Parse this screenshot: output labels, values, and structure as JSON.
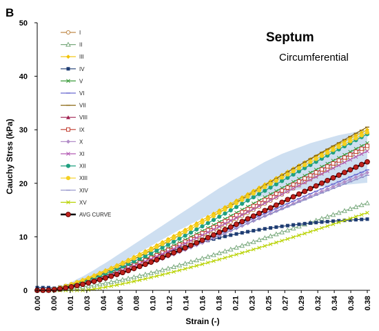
{
  "chart_data": {
    "type": "line",
    "panel_label": "B",
    "title": "Septum",
    "subtitle": "Circumferential",
    "xlabel": "Strain (-)",
    "ylabel": "Cauchy Strss (kPa)",
    "x": [
      0.0,
      0.0,
      0.01,
      0.01,
      0.02,
      0.03,
      0.03,
      0.04,
      0.04,
      0.05,
      0.06,
      0.06,
      0.07,
      0.08,
      0.08,
      0.09,
      0.1,
      0.1,
      0.11,
      0.12,
      0.12,
      0.13,
      0.14,
      0.14,
      0.15,
      0.16,
      0.16,
      0.17,
      0.18,
      0.18,
      0.19,
      0.2,
      0.21,
      0.21,
      0.22,
      0.23,
      0.23,
      0.24,
      0.25,
      0.25,
      0.26,
      0.27,
      0.27,
      0.28,
      0.29,
      0.29,
      0.3,
      0.31,
      0.31,
      0.32,
      0.33,
      0.33,
      0.34,
      0.35,
      0.35,
      0.36,
      0.37,
      0.37,
      0.38
    ],
    "x_tick_labels": [
      "0.00",
      "0.00",
      "0.01",
      "0.03",
      "0.04",
      "0.06",
      "0.08",
      "0.10",
      "0.12",
      "0.14",
      "0.16",
      "0.18",
      "0.21",
      "0.23",
      "0.25",
      "0.27",
      "0.29",
      "0.32",
      "0.34",
      "0.36",
      "0.38"
    ],
    "y_ticks": [
      0,
      10,
      20,
      30,
      40,
      50
    ],
    "ylim": [
      0,
      50
    ],
    "grid": false,
    "legend_position": "top-left",
    "band": {
      "lower": [
        0,
        0,
        0,
        0.1,
        0.3,
        0.6,
        0.9,
        1.3,
        1.7,
        2.1,
        2.6,
        3.1,
        3.6,
        4.1,
        4.7,
        5.3,
        5.9,
        6.5,
        7.1,
        7.7,
        8.3,
        8.9,
        9.5,
        10.1,
        10.7,
        11.3,
        11.8,
        12.4,
        12.9,
        13.5,
        14.0,
        14.5,
        15.0,
        15.4,
        15.8,
        16.2,
        16.5,
        16.8,
        17.1,
        17.3,
        17.6,
        17.8,
        18.0,
        18.2,
        18.4,
        18.6,
        18.8,
        18.9,
        19.1,
        19.2,
        19.3,
        19.4,
        19.5,
        19.6,
        19.7,
        19.8,
        19.9,
        20.0,
        20.1
      ],
      "upper": [
        0,
        0,
        0,
        0.2,
        0.6,
        1.0,
        1.5,
        2.1,
        2.6,
        3.2,
        3.8,
        4.5,
        5.1,
        5.8,
        6.5,
        7.2,
        7.9,
        8.6,
        9.3,
        10.0,
        10.7,
        11.4,
        12.1,
        12.8,
        13.5,
        14.2,
        14.9,
        15.6,
        16.3,
        17.0,
        17.7,
        18.4,
        19.1,
        19.7,
        20.4,
        21.0,
        21.6,
        22.2,
        22.8,
        23.4,
        24.0,
        24.5,
        25.0,
        25.5,
        25.9,
        26.3,
        26.7,
        27.1,
        27.5,
        27.8,
        28.1,
        28.4,
        28.7,
        29.0,
        29.2,
        29.4,
        29.6,
        29.8,
        30.0
      ],
      "color": "#c5d9ee"
    },
    "series": [
      {
        "name": "I",
        "color": "#c08a4a",
        "marker": "circle-open",
        "final": 26.5,
        "k": 1.0
      },
      {
        "name": "II",
        "color": "#7aaa7e",
        "marker": "triangle-open",
        "final": 16.3,
        "k": 1.1
      },
      {
        "name": "III",
        "color": "#f2c200",
        "marker": "diamond",
        "final": 30.0,
        "k": 0.55
      },
      {
        "name": "IV",
        "color": "#1f3d73",
        "marker": "square",
        "final": 13.3,
        "k": 1.4
      },
      {
        "name": "V",
        "color": "#3a9b3a",
        "marker": "x",
        "final": 27.5,
        "k": 0.8
      },
      {
        "name": "VI",
        "color": "#6a6ad0",
        "marker": "dash",
        "final": 22.5,
        "k": 0.75
      },
      {
        "name": "VII",
        "color": "#8b6914",
        "marker": "dash",
        "final": 30.5,
        "k": 0.7
      },
      {
        "name": "VIII",
        "color": "#a02050",
        "marker": "triangle",
        "final": 24.0,
        "k": 0.9
      },
      {
        "name": "IX",
        "color": "#c0392b",
        "marker": "square-open",
        "final": 27.0,
        "k": 0.85
      },
      {
        "name": "X",
        "color": "#b28dc8",
        "marker": "diamond",
        "final": 22.0,
        "k": 0.8
      },
      {
        "name": "XI",
        "color": "#b35ab3",
        "marker": "x",
        "final": 26.0,
        "k": 0.85
      },
      {
        "name": "XII",
        "color": "#20a080",
        "marker": "circle",
        "final": 29.2,
        "k": 0.75
      },
      {
        "name": "XIII",
        "color": "#f5d020",
        "marker": "circle",
        "final": 29.5,
        "k": 0.6
      },
      {
        "name": "XIV",
        "color": "#8e8ec8",
        "marker": "dash",
        "final": 21.5,
        "k": 0.7
      },
      {
        "name": "XV",
        "color": "#b8d200",
        "marker": "x",
        "final": 14.5,
        "k": 2.2
      },
      {
        "name": "AVG CURVE",
        "color": "#000000",
        "marker": "circle-red",
        "final": 24.0,
        "k": 0.9
      }
    ]
  }
}
